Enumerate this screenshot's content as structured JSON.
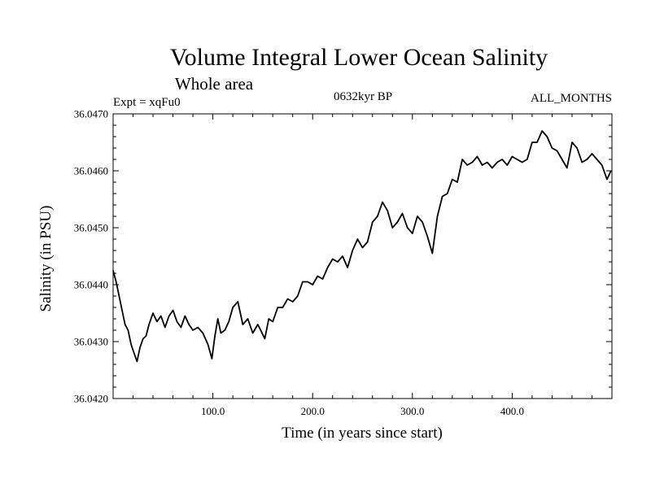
{
  "chart_data": {
    "type": "line",
    "title": "Volume Integral Lower Ocean Salinity",
    "subtitle": "Whole area",
    "left_label": "Expt = xqFu0",
    "center_label": "0632kyr BP",
    "right_label": "ALL_MONTHS",
    "xlabel": "Time (in years since start)",
    "ylabel": "Salinity (in PSU)",
    "xlim": [
      0,
      500
    ],
    "ylim": [
      36.042,
      36.047
    ],
    "x_ticks": [
      100,
      200,
      300,
      400
    ],
    "x_tick_labels": [
      "100.0",
      "200.0",
      "300.0",
      "400.0"
    ],
    "y_ticks": [
      36.042,
      36.043,
      36.044,
      36.045,
      36.046,
      36.047
    ],
    "y_tick_labels": [
      "36.0420",
      "36.0430",
      "36.0440",
      "36.0450",
      "36.0460",
      "36.0470"
    ],
    "grid": false,
    "line_color": "#000000",
    "series": [
      {
        "name": "Salinity",
        "x": [
          0,
          3,
          6,
          9,
          12,
          15,
          18,
          21,
          24,
          27,
          30,
          33,
          36,
          40,
          44,
          48,
          52,
          56,
          60,
          64,
          68,
          72,
          76,
          80,
          85,
          90,
          95,
          99,
          102,
          105,
          108,
          112,
          116,
          120,
          125,
          130,
          135,
          140,
          145,
          148,
          152,
          156,
          160,
          165,
          170,
          175,
          180,
          185,
          190,
          195,
          200,
          205,
          210,
          215,
          220,
          225,
          230,
          235,
          240,
          245,
          250,
          255,
          260,
          265,
          270,
          275,
          280,
          285,
          290,
          295,
          300,
          305,
          310,
          315,
          320,
          325,
          330,
          335,
          340,
          345,
          350,
          355,
          360,
          365,
          370,
          375,
          380,
          385,
          390,
          395,
          400,
          405,
          410,
          415,
          420,
          425,
          430,
          435,
          440,
          445,
          450,
          455,
          460,
          465,
          470,
          475,
          480,
          485,
          490,
          495,
          499
        ],
        "values": [
          36.04425,
          36.04405,
          36.0438,
          36.04355,
          36.0433,
          36.0432,
          36.04295,
          36.0428,
          36.04265,
          36.0429,
          36.04305,
          36.0431,
          36.0433,
          36.0435,
          36.04335,
          36.04345,
          36.04325,
          36.04345,
          36.04355,
          36.04335,
          36.04325,
          36.04345,
          36.0433,
          36.0432,
          36.04325,
          36.04315,
          36.04295,
          36.0427,
          36.0431,
          36.0434,
          36.04315,
          36.0432,
          36.04335,
          36.0436,
          36.0437,
          36.0433,
          36.0434,
          36.04315,
          36.0433,
          36.0432,
          36.04305,
          36.0434,
          36.04335,
          36.0436,
          36.0436,
          36.04375,
          36.0437,
          36.0438,
          36.04405,
          36.04405,
          36.044,
          36.04415,
          36.0441,
          36.0443,
          36.04445,
          36.0444,
          36.0445,
          36.0443,
          36.0446,
          36.0448,
          36.04465,
          36.04475,
          36.0451,
          36.0452,
          36.04545,
          36.0453,
          36.045,
          36.0451,
          36.04525,
          36.045,
          36.0449,
          36.0452,
          36.0451,
          36.04485,
          36.04455,
          36.0452,
          36.04555,
          36.0456,
          36.04585,
          36.0458,
          36.0462,
          36.0461,
          36.04615,
          36.04625,
          36.0461,
          36.04615,
          36.04605,
          36.04615,
          36.0462,
          36.0461,
          36.04625,
          36.0462,
          36.04615,
          36.0462,
          36.0465,
          36.0465,
          36.0467,
          36.0466,
          36.0464,
          36.04635,
          36.0462,
          36.04605,
          36.0465,
          36.0464,
          36.04615,
          36.0462,
          36.0463,
          36.0462,
          36.0461,
          36.04585,
          36.046
        ]
      }
    ]
  }
}
